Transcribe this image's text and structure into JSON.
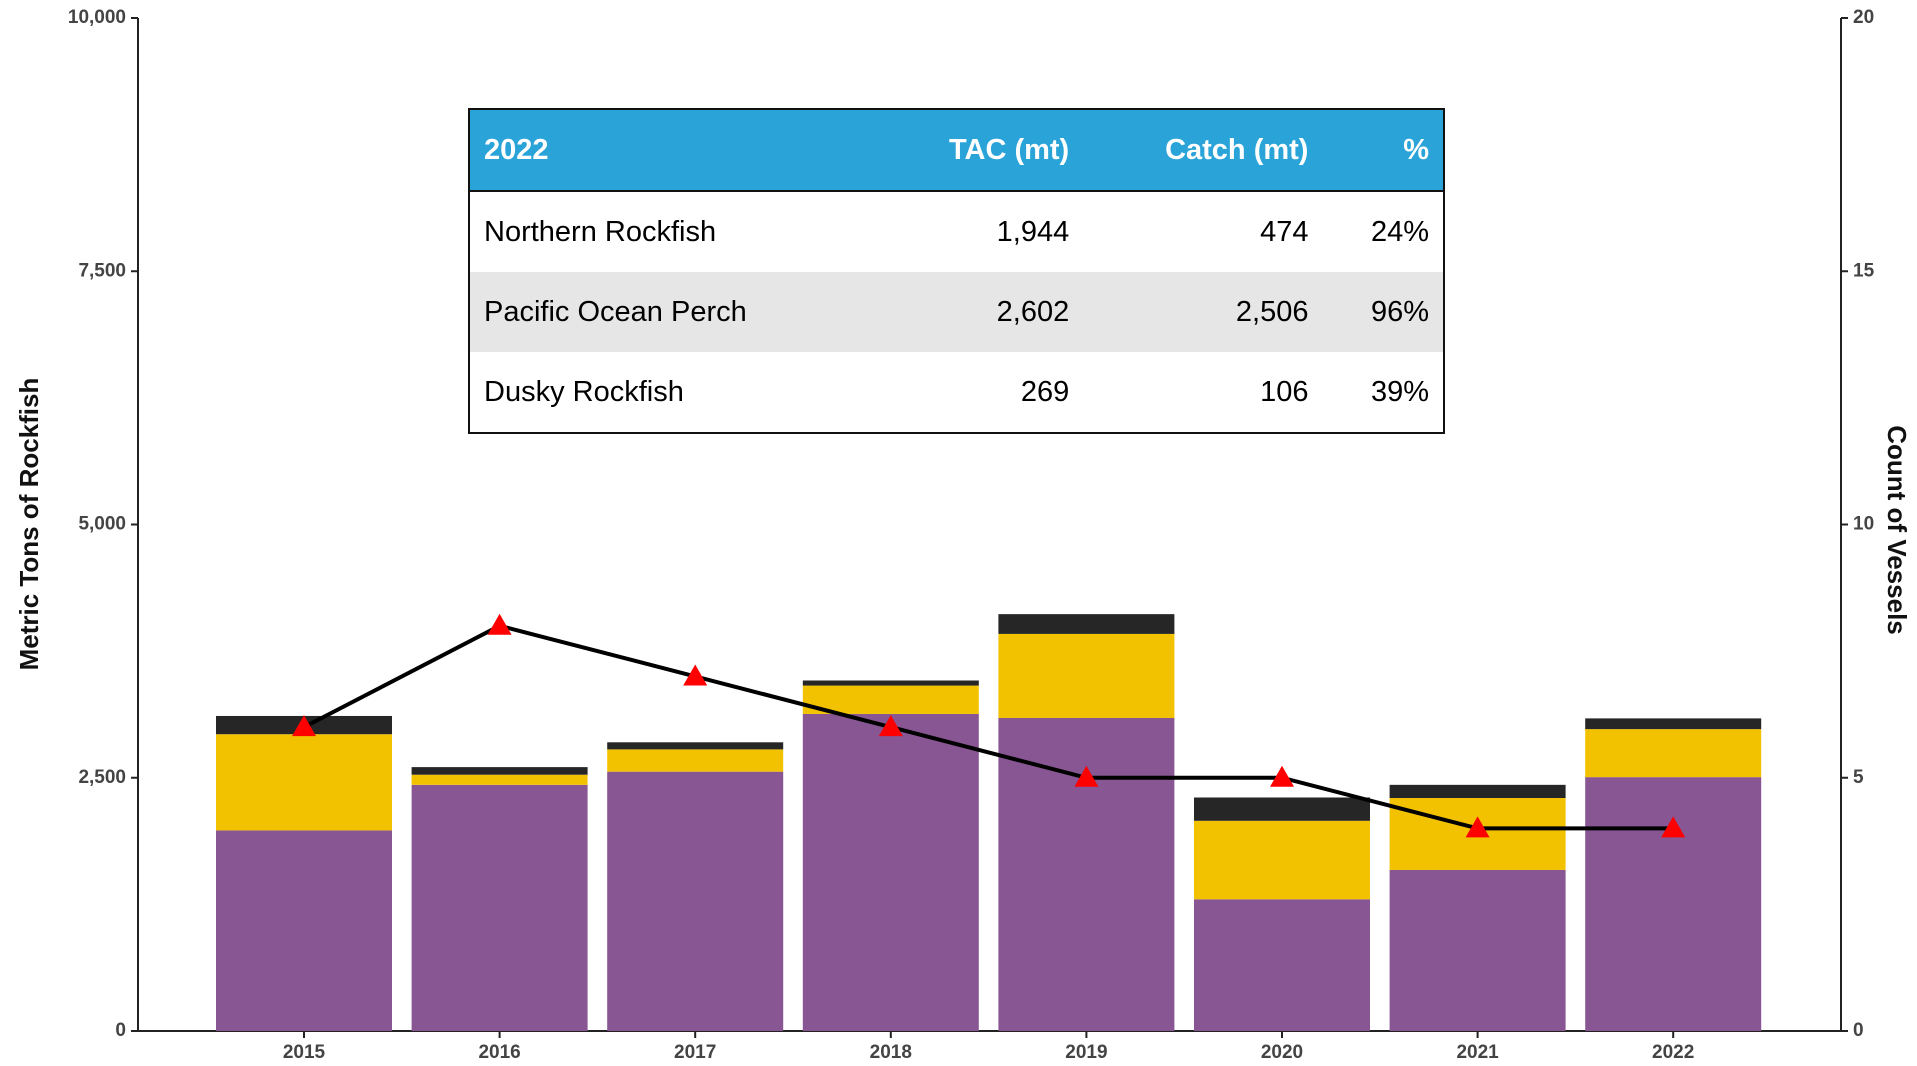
{
  "chart_data": {
    "type": "bar",
    "stacked": true,
    "y_label": "Metric Tons of Rockfish",
    "y2_label": "Count of Vessels",
    "categories": [
      "2015",
      "2016",
      "2017",
      "2018",
      "2019",
      "2020",
      "2021",
      "2022"
    ],
    "series": [
      {
        "color": "#875693",
        "values": [
          1980,
          2430,
          2560,
          3130,
          3090,
          1300,
          1590,
          2506
        ]
      },
      {
        "color": "#f2c200",
        "values": [
          950,
          100,
          220,
          280,
          830,
          775,
          710,
          474
        ]
      },
      {
        "color": "#262626",
        "values": [
          180,
          75,
          70,
          50,
          195,
          230,
          130,
          106
        ]
      },
      {
        "type": "line",
        "axis": "y2",
        "color": "#000000",
        "marker_color": "#ff0000",
        "values": [
          6,
          8,
          7,
          6,
          5,
          5,
          4,
          4
        ]
      }
    ],
    "ylim": [
      0,
      10000
    ],
    "yticks": [
      0,
      {
        "value": 2500,
        "label": "2,500"
      },
      {
        "value": 5000,
        "label": "5,000"
      },
      {
        "value": 7500,
        "label": "7,500"
      },
      {
        "value": 10000,
        "label": "10,000"
      }
    ],
    "y2lim": [
      0,
      20
    ],
    "y2ticks": [
      0,
      5,
      10,
      15,
      20
    ]
  },
  "table": {
    "header": [
      "2022",
      "TAC (mt)",
      "Catch (mt)",
      "%"
    ],
    "rows": [
      [
        "Northern Rockfish",
        "1,944",
        "474",
        "24%"
      ],
      [
        "Pacific Ocean Perch",
        "2,602",
        "2,506",
        "96%"
      ],
      [
        "Dusky Rockfish",
        "269",
        "106",
        "39%"
      ]
    ]
  }
}
